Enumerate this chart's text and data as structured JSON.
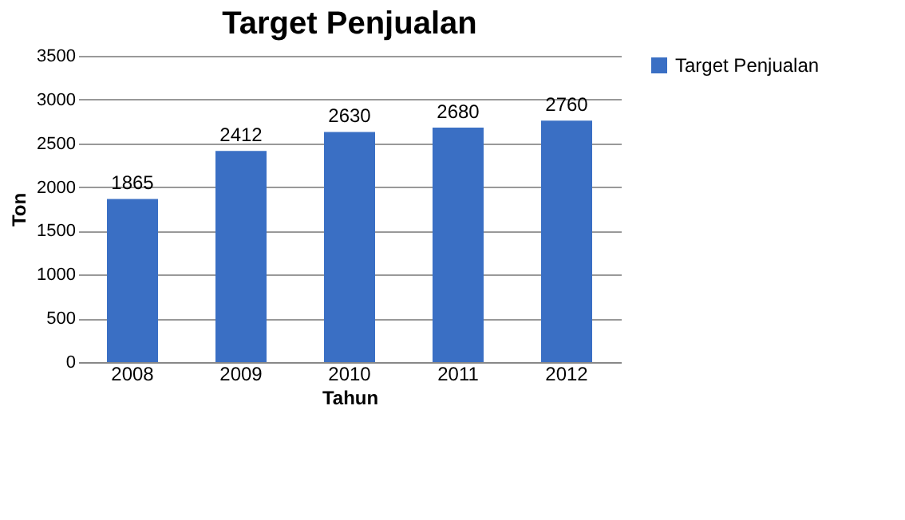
{
  "chart_data": {
    "type": "bar",
    "title": "Target Penjualan",
    "xlabel": "Tahun",
    "ylabel": "Ton",
    "categories": [
      "2008",
      "2009",
      "2010",
      "2011",
      "2012"
    ],
    "series": [
      {
        "name": "Target Penjualan",
        "color": "#3a6fc4",
        "values": [
          1865,
          2412,
          2630,
          2680,
          2760
        ]
      }
    ],
    "ylim": [
      0,
      3500
    ],
    "yticks": [
      0,
      500,
      1000,
      1500,
      2000,
      2500,
      3000,
      3500
    ],
    "grid": "y",
    "legend": "right",
    "data_labels": true
  }
}
